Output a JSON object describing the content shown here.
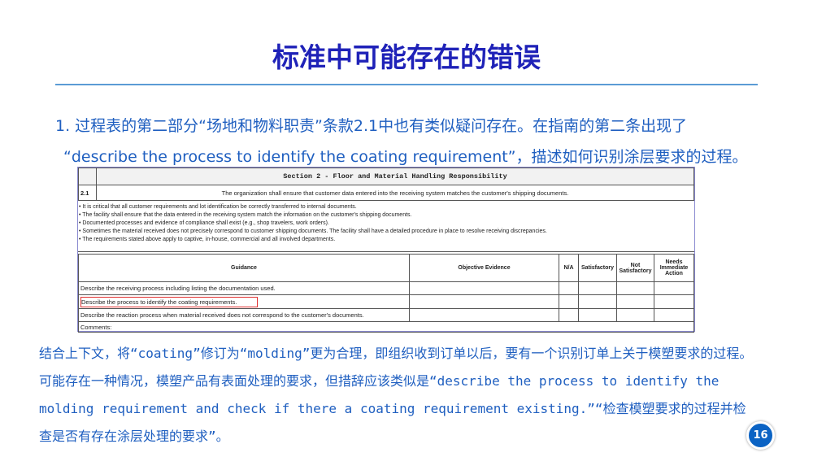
{
  "title": "标准中可能存在的错误",
  "intro": {
    "line1": "1.  过程表的第二部分“场地和物料职责”条款2.1中也有类似疑问存在。在指南的第二条出现了",
    "line2": "“describe the process to identify the coating requirement”，描述如何识别涂层要求的过程。"
  },
  "table": {
    "section": "Section 2 - Floor and Material Handling Responsibility",
    "clause_no": "2.1",
    "clause_text": "The organization shall ensure that customer data entered into the receiving system matches the customer's shipping documents.",
    "bullets": [
      "• It is critical that all customer requirements and lot identification be correctly transferred to internal documents.",
      "• The facility shall ensure that the data entered in the receiving system match the information on the customer's shipping documents.",
      "• Documented processes and evidence of compliance shall exist (e.g., shop travelers, work orders).",
      "• Sometimes the material received does not precisely correspond to customer shipping documents. The facility shall have a detailed procedure in place to resolve receiving discrepancies.",
      "• The requirements stated above apply to captive, in-house, commercial and all involved departments."
    ],
    "headers": [
      "Guidance",
      "Objective Evidence",
      "N/A",
      "Satisfactory",
      "Not Satisfactory",
      "Needs Immediate Action"
    ],
    "rows": [
      "Describe the receiving process including listing the documentation used.",
      "Describe the process to identify the coating requirements.",
      "Describe the reaction process when material received does not correspond to the customer's documents."
    ],
    "comments": "Comments:"
  },
  "paragraph": "结合上下文，将“coating”修订为“molding”更为合理，即组织收到订单以后，要有一个识别订单上关于模塑要求的过程。可能存在一种情况，模塑产品有表面处理的要求，但措辞应该类似是“describe the process to identify the molding requirement and check if there a coating requirement existing.”“检查模塑要求的过程并检查是否有存在涂层处理的要求”。",
  "page_number": "16",
  "colors": {
    "title": "#1f22b8",
    "text": "#1f5fc0",
    "highlight": "#e03030",
    "page_badge": "#0b63c4"
  }
}
